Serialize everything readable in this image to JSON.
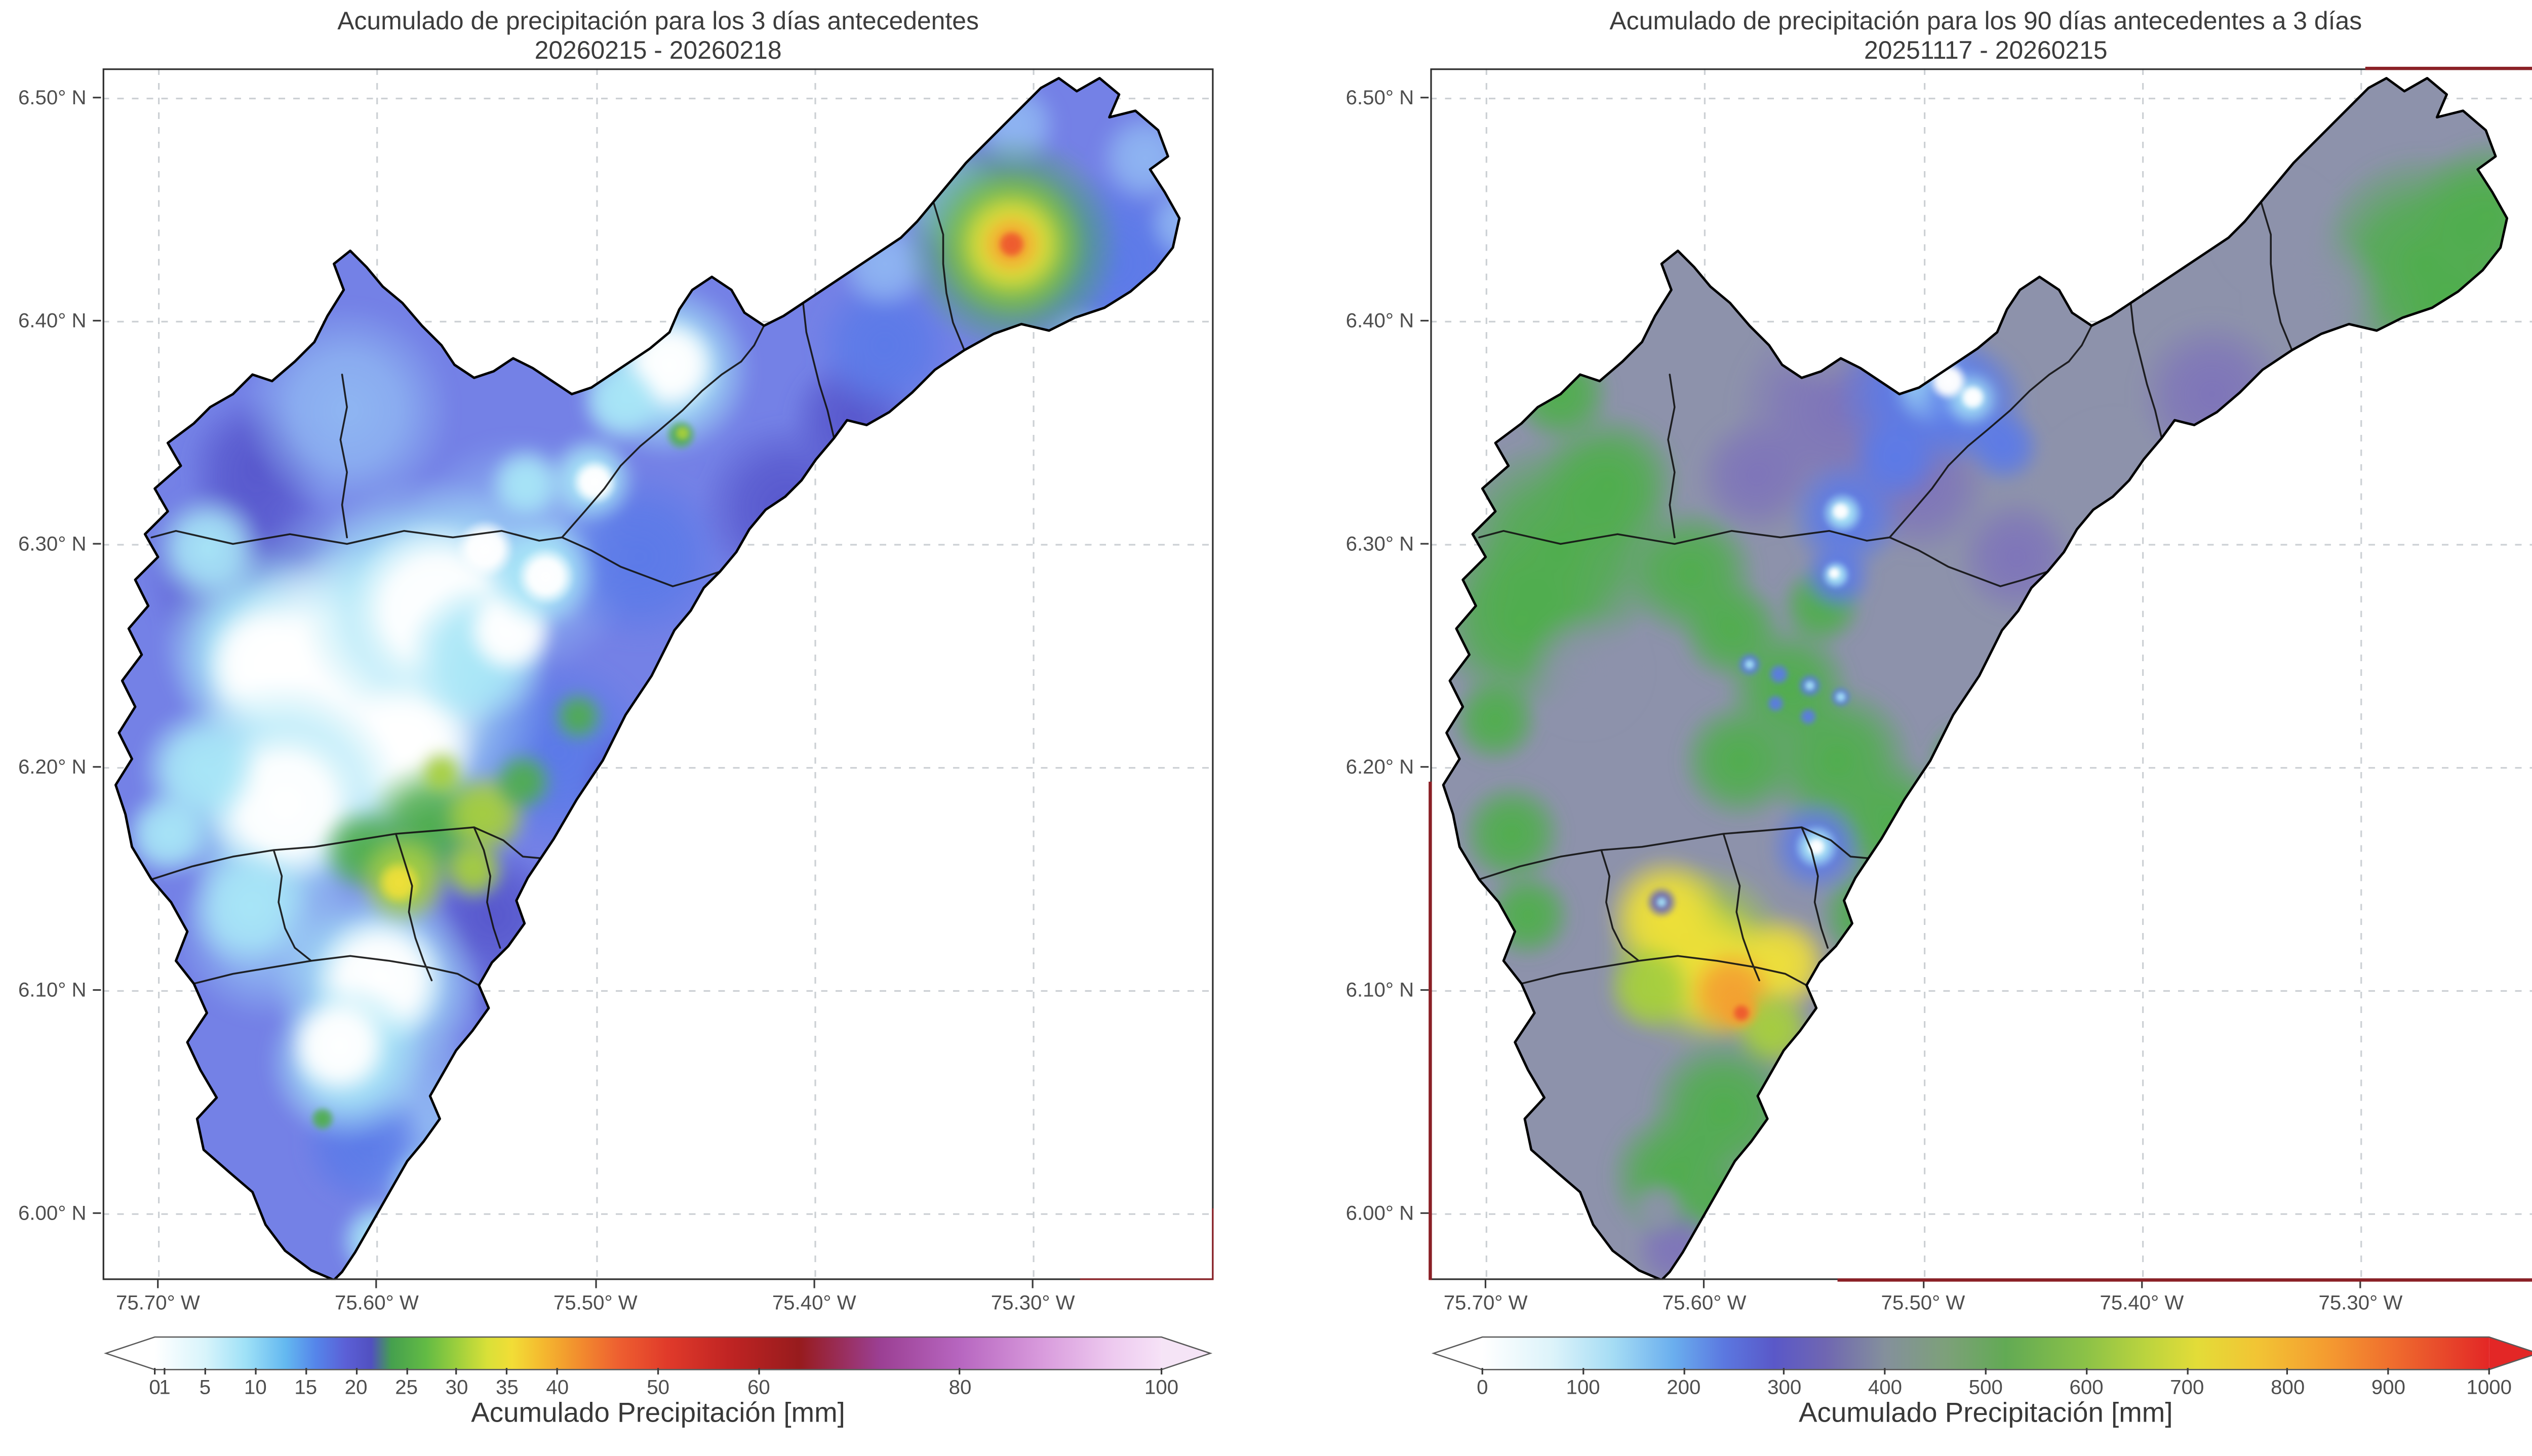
{
  "figure": {
    "background": "#ffffff",
    "text_color": "#3c3c3c"
  },
  "panels": [
    {
      "title_line1": "Acumulado de precipitación para los 3 días antecedentes",
      "title_line2": "20260215 - 20260218",
      "axes": {
        "x_min": -75.7253,
        "x_max": -75.2174,
        "y_min": 5.9701,
        "y_max": 6.5131,
        "x_ticks": [
          {
            "v": -75.7,
            "label": "75.70° W"
          },
          {
            "v": -75.6,
            "label": "75.60° W"
          },
          {
            "v": -75.5,
            "label": "75.50° W"
          },
          {
            "v": -75.4,
            "label": "75.40° W"
          },
          {
            "v": -75.3,
            "label": "75.30° W"
          }
        ],
        "y_ticks": [
          {
            "v": 6.5,
            "label": "6.50° N"
          },
          {
            "v": 6.4,
            "label": "6.40° N"
          },
          {
            "v": 6.3,
            "label": "6.30° N"
          },
          {
            "v": 6.2,
            "label": "6.20° N"
          },
          {
            "v": 6.1,
            "label": "6.10° N"
          },
          {
            "v": 6.0,
            "label": "6.00° N"
          }
        ]
      },
      "colorbar": {
        "label": "Acumulado Precipitación [mm]",
        "vmin": 0,
        "vmax": 100,
        "arrow_left": "#ffffff",
        "arrow_right": "#f5e4f6",
        "ticks": [
          {
            "v": 0,
            "label": "0"
          },
          {
            "v": 1,
            "label": "1"
          },
          {
            "v": 5,
            "label": "5"
          },
          {
            "v": 10,
            "label": "10"
          },
          {
            "v": 15,
            "label": "15"
          },
          {
            "v": 20,
            "label": "20"
          },
          {
            "v": 25,
            "label": "25"
          },
          {
            "v": 30,
            "label": "30"
          },
          {
            "v": 35,
            "label": "35"
          },
          {
            "v": 40,
            "label": "40"
          },
          {
            "v": 50,
            "label": "50"
          },
          {
            "v": 60,
            "label": "60"
          },
          {
            "v": 80,
            "label": "80"
          },
          {
            "v": 100,
            "label": "100"
          }
        ],
        "stops": [
          {
            "o": 0.0,
            "c": "#ffffff"
          },
          {
            "o": 0.05,
            "c": "#d8f4fb"
          },
          {
            "o": 0.09,
            "c": "#9fe1f7"
          },
          {
            "o": 0.13,
            "c": "#63b8f0"
          },
          {
            "o": 0.16,
            "c": "#5585ea"
          },
          {
            "o": 0.19,
            "c": "#5b5fd6"
          },
          {
            "o": 0.215,
            "c": "#5150c0"
          },
          {
            "o": 0.235,
            "c": "#45a04e"
          },
          {
            "o": 0.27,
            "c": "#63bb44"
          },
          {
            "o": 0.3,
            "c": "#9ccf3d"
          },
          {
            "o": 0.33,
            "c": "#d8e038"
          },
          {
            "o": 0.355,
            "c": "#f2dd36"
          },
          {
            "o": 0.385,
            "c": "#f4b92f"
          },
          {
            "o": 0.42,
            "c": "#f28f2e"
          },
          {
            "o": 0.46,
            "c": "#ee6030"
          },
          {
            "o": 0.51,
            "c": "#e03a2a"
          },
          {
            "o": 0.57,
            "c": "#c02423"
          },
          {
            "o": 0.64,
            "c": "#971b1d"
          },
          {
            "o": 0.72,
            "c": "#9b3f93"
          },
          {
            "o": 0.8,
            "c": "#b766c0"
          },
          {
            "o": 0.88,
            "c": "#d89adc"
          },
          {
            "o": 0.95,
            "c": "#edc9ef"
          },
          {
            "o": 1.0,
            "c": "#f6e2f7"
          }
        ]
      }
    },
    {
      "title_line1": "Acumulado de precipitación para los 90 días antecedentes a 3 días",
      "title_line2": "20251117 - 20260215",
      "axes": {
        "x_min": -75.7253,
        "x_max": -75.2174,
        "y_min": 5.9701,
        "y_max": 6.5131,
        "x_ticks": [
          {
            "v": -75.7,
            "label": "75.70° W"
          },
          {
            "v": -75.6,
            "label": "75.60° W"
          },
          {
            "v": -75.5,
            "label": "75.50° W"
          },
          {
            "v": -75.4,
            "label": "75.40° W"
          },
          {
            "v": -75.3,
            "label": "75.30° W"
          }
        ],
        "y_ticks": [
          {
            "v": 6.5,
            "label": "6.50° N"
          },
          {
            "v": 6.4,
            "label": "6.40° N"
          },
          {
            "v": 6.3,
            "label": "6.30° N"
          },
          {
            "v": 6.2,
            "label": "6.20° N"
          },
          {
            "v": 6.1,
            "label": "6.10° N"
          },
          {
            "v": 6.0,
            "label": "6.00° N"
          }
        ]
      },
      "colorbar": {
        "label": "Acumulado Precipitación [mm]",
        "vmin": 0,
        "vmax": 1000,
        "arrow_left": "#ffffff",
        "arrow_right": "#e32726",
        "ticks": [
          {
            "v": 0,
            "label": "0"
          },
          {
            "v": 100,
            "label": "100"
          },
          {
            "v": 200,
            "label": "200"
          },
          {
            "v": 300,
            "label": "300"
          },
          {
            "v": 400,
            "label": "400"
          },
          {
            "v": 500,
            "label": "500"
          },
          {
            "v": 600,
            "label": "600"
          },
          {
            "v": 700,
            "label": "700"
          },
          {
            "v": 800,
            "label": "800"
          },
          {
            "v": 900,
            "label": "900"
          },
          {
            "v": 1000,
            "label": "1000"
          }
        ],
        "stops": [
          {
            "o": 0.0,
            "c": "#ffffff"
          },
          {
            "o": 0.07,
            "c": "#dcf3fa"
          },
          {
            "o": 0.13,
            "c": "#a5dcf4"
          },
          {
            "o": 0.19,
            "c": "#6aaeee"
          },
          {
            "o": 0.24,
            "c": "#5b78e0"
          },
          {
            "o": 0.29,
            "c": "#5a58c8"
          },
          {
            "o": 0.34,
            "c": "#6f66b2"
          },
          {
            "o": 0.4,
            "c": "#84909c"
          },
          {
            "o": 0.46,
            "c": "#7da07a"
          },
          {
            "o": 0.52,
            "c": "#62aa54"
          },
          {
            "o": 0.6,
            "c": "#8cc247"
          },
          {
            "o": 0.66,
            "c": "#bcd43e"
          },
          {
            "o": 0.71,
            "c": "#e3dc38"
          },
          {
            "o": 0.77,
            "c": "#f2c434"
          },
          {
            "o": 0.84,
            "c": "#f49b30"
          },
          {
            "o": 0.9,
            "c": "#f0702e"
          },
          {
            "o": 0.95,
            "c": "#e84c2b"
          },
          {
            "o": 1.0,
            "c": "#e32726"
          }
        ]
      }
    }
  ],
  "chart_data": [
    {
      "type": "heatmap",
      "title": "Acumulado de precipitación para los 3 días antecedentes",
      "subtitle": "20260215 - 20260218",
      "x_range_deg_w": [
        75.72,
        75.22
      ],
      "y_range_deg_n": [
        5.97,
        6.51
      ],
      "colorbar_label": "Acumulado Precipitación [mm]",
      "colorbar_ticks_mm": [
        0,
        1,
        5,
        10,
        15,
        20,
        25,
        30,
        35,
        40,
        50,
        60,
        80,
        100
      ],
      "value_range_mm": [
        0,
        100
      ],
      "grid": true,
      "legend_position": "bottom colorbar with arrow ends",
      "features": [
        {
          "location": "background field across basin",
          "lon": -75.5,
          "lat": 6.3,
          "value_mm": 12
        },
        {
          "location": "dry white zone center-west",
          "lon": -75.61,
          "lat": 6.23,
          "value_mm": 1
        },
        {
          "location": "dry white zone south",
          "lon": -75.6,
          "lat": 6.1,
          "value_mm": 2
        },
        {
          "location": "rain cluster south-central (yellow-green)",
          "lon": -75.59,
          "lat": 6.17,
          "value_mm": 30
        },
        {
          "location": "maximum northeast (orange core)",
          "lon": -75.31,
          "lat": 6.43,
          "value_mm": 55
        },
        {
          "location": "small green spot in neck",
          "lon": -75.48,
          "lat": 6.35,
          "value_mm": 28
        },
        {
          "location": "white patch in neck",
          "lon": -75.49,
          "lat": 6.37,
          "value_mm": 3
        }
      ]
    },
    {
      "type": "heatmap",
      "title": "Acumulado de precipitación para los 90 días antecedentes a 3 días",
      "subtitle": "20251117 - 20260215",
      "x_range_deg_w": [
        75.72,
        75.22
      ],
      "y_range_deg_n": [
        5.97,
        6.51
      ],
      "colorbar_label": "Acumulado Precipitación [mm]",
      "colorbar_ticks_mm": [
        0,
        100,
        200,
        300,
        400,
        500,
        600,
        700,
        800,
        900,
        1000
      ],
      "value_range_mm": [
        0,
        1000
      ],
      "grid": true,
      "legend_position": "bottom colorbar with arrow ends",
      "features": [
        {
          "location": "background field across basin (slate)",
          "lon": -75.5,
          "lat": 6.3,
          "value_mm": 430
        },
        {
          "location": "green zones west and central",
          "lon": -75.67,
          "lat": 6.28,
          "value_mm": 600
        },
        {
          "location": "blue minima north-central with white cores",
          "lon": -75.5,
          "lat": 6.37,
          "value_mm": 150
        },
        {
          "location": "low ring spot (blue donut)",
          "lon": -75.55,
          "lat": 6.16,
          "value_mm": 250
        },
        {
          "location": "maximum south-central (orange)",
          "lon": -75.59,
          "lat": 6.1,
          "value_mm": 800
        },
        {
          "location": "northeast green area",
          "lon": -75.27,
          "lat": 6.43,
          "value_mm": 600
        },
        {
          "location": "south tail greens",
          "lon": -75.61,
          "lat": 6.03,
          "value_mm": 600
        }
      ]
    }
  ]
}
